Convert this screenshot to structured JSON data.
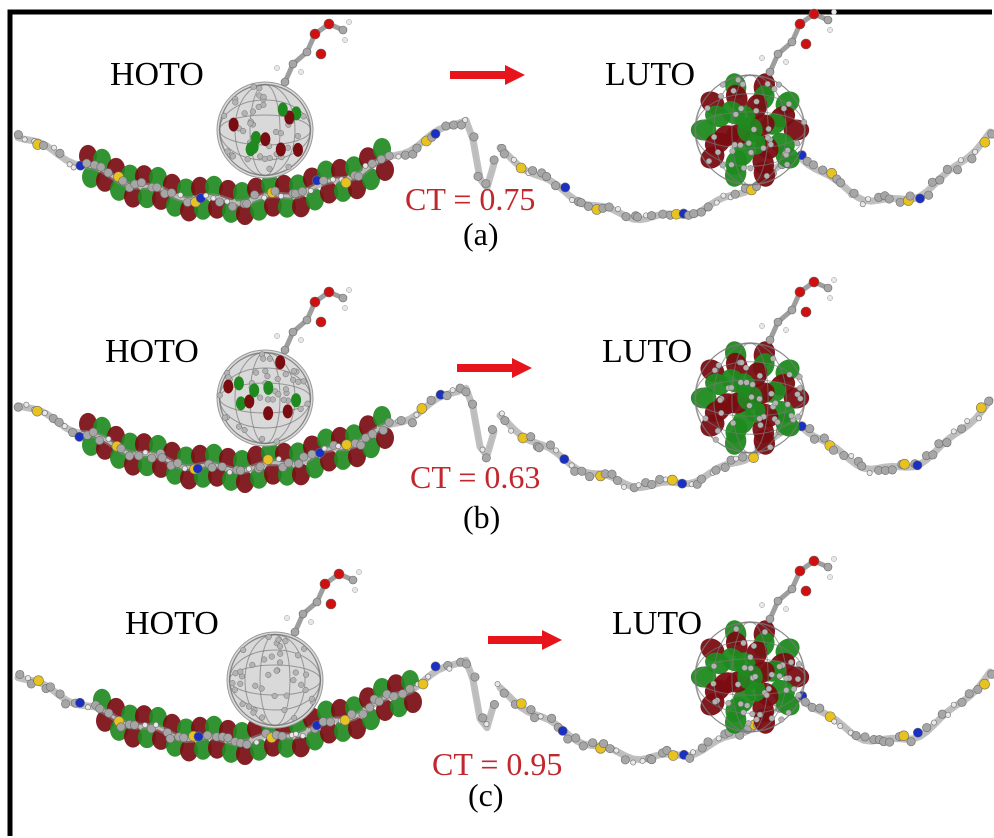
{
  "colors": {
    "arrow": "#e8141b",
    "ct_text": "#c1272d",
    "orbital_positive": "#1f8a1f",
    "orbital_negative": "#7a0d12",
    "carbon": "#a6a6a6",
    "hydrogen": "#e8e8e8",
    "sulfur": "#e8c21e",
    "nitrogen": "#1a2fc4",
    "oxygen": "#d01010",
    "frame": "#000000"
  },
  "panels": [
    {
      "id": "a",
      "caption": "(a)",
      "left_label": "HOTO",
      "right_label": "LUTO",
      "ct_text": "CT = 0.75"
    },
    {
      "id": "b",
      "caption": "(b)",
      "left_label": "HOTO",
      "right_label": "LUTO",
      "ct_text": "CT = 0.63"
    },
    {
      "id": "c",
      "caption": "(c)",
      "left_label": "HOTO",
      "right_label": "LUTO",
      "ct_text": "CT = 0.95"
    }
  ]
}
